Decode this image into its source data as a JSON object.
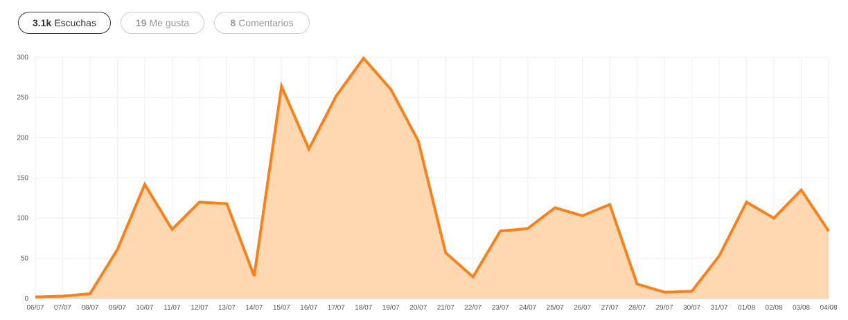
{
  "tabs": [
    {
      "count": "3.1k",
      "label": "Escuchas",
      "active": true
    },
    {
      "count": "19",
      "label": "Me gusta",
      "active": false
    },
    {
      "count": "8",
      "label": "Comentarios",
      "active": false
    }
  ],
  "colors": {
    "line": "#f5821f",
    "area": "#fdd8b0",
    "grid": "#eeeeee",
    "axis": "#cccccc"
  },
  "chart_data": {
    "type": "area",
    "title": "",
    "xlabel": "",
    "ylabel": "",
    "ylim": [
      0,
      300
    ],
    "yticks": [
      0,
      50,
      100,
      150,
      200,
      250,
      300
    ],
    "grid": true,
    "legend": "none",
    "categories": [
      "06/07",
      "07/07",
      "08/07",
      "09/07",
      "10/07",
      "11/07",
      "12/07",
      "13/07",
      "14/07",
      "15/07",
      "16/07",
      "17/07",
      "18/07",
      "19/07",
      "20/07",
      "21/07",
      "22/07",
      "23/07",
      "24/07",
      "25/07",
      "26/07",
      "27/07",
      "28/07",
      "29/07",
      "30/07",
      "31/07",
      "01/08",
      "02/08",
      "03/08",
      "04/08"
    ],
    "series": [
      {
        "values": [
          2,
          3,
          6,
          61,
          142,
          86,
          120,
          118,
          28,
          264,
          186,
          252,
          299,
          260,
          196,
          57,
          27,
          84,
          87,
          113,
          103,
          117,
          18,
          8,
          9,
          53,
          120,
          100,
          135,
          84
        ]
      }
    ]
  }
}
